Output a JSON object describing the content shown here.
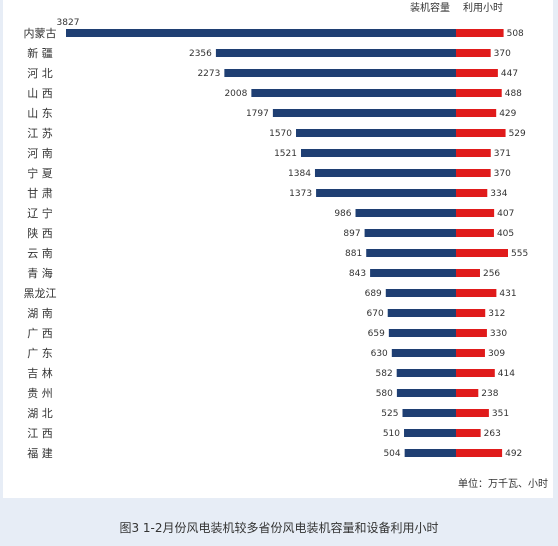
{
  "caption": "图3 1-2月份风电装机较多省份风电装机容量和设备利用小时",
  "chart_data": {
    "type": "bar",
    "orientation": "horizontal-butterfly",
    "categories": [
      "内蒙古",
      "新 疆",
      "河 北",
      "山 西",
      "山 东",
      "江 苏",
      "河 南",
      "宁 夏",
      "甘 肃",
      "辽 宁",
      "陕 西",
      "云 南",
      "青 海",
      "黑龙江",
      "湖 南",
      "广 西",
      "广 东",
      "吉 林",
      "贵 州",
      "湖 北",
      "江 西",
      "福 建"
    ],
    "series": [
      {
        "name": "装机容量",
        "color": "#1f3f73",
        "direction": "left",
        "values": [
          3827,
          2356,
          2273,
          2008,
          1797,
          1570,
          1521,
          1384,
          1373,
          986,
          897,
          881,
          843,
          689,
          670,
          659,
          630,
          582,
          580,
          525,
          510,
          504
        ]
      },
      {
        "name": "利用小时",
        "color": "#e01b1b",
        "direction": "right",
        "values": [
          508,
          370,
          447,
          488,
          429,
          529,
          371,
          370,
          334,
          407,
          405,
          555,
          256,
          431,
          312,
          330,
          309,
          414,
          238,
          351,
          263,
          492
        ]
      }
    ],
    "unit_note": "单位：万千瓦、小时",
    "legend_position": "top-right",
    "grid": false
  }
}
